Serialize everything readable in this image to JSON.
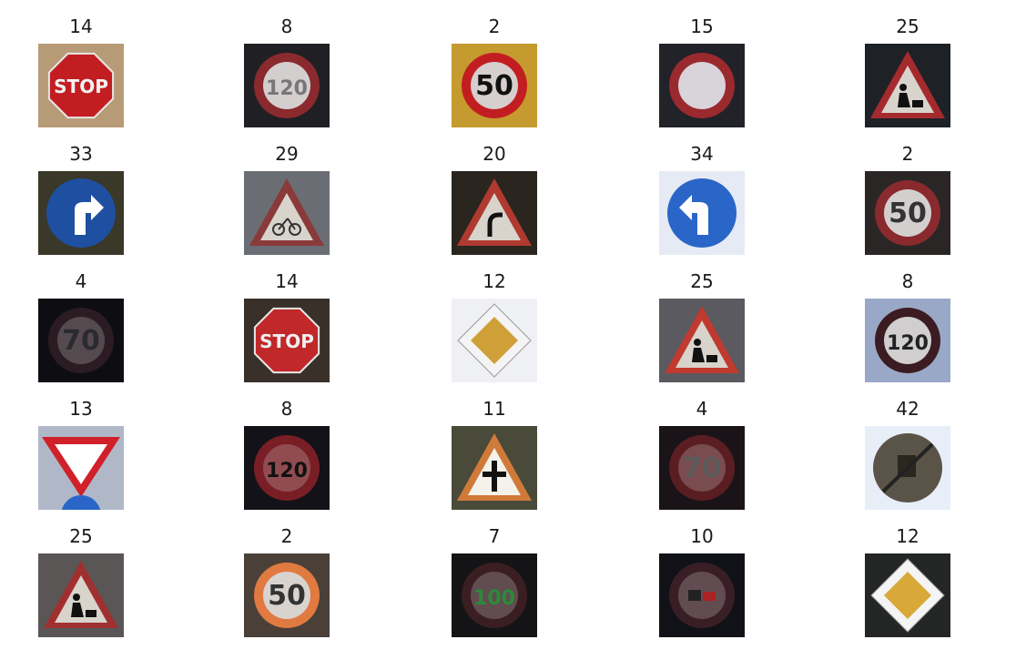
{
  "tiles": [
    {
      "label": "14",
      "icon": "stop-sign",
      "bg": "#b79a76",
      "plate": "#c21e22",
      "plate_text": "STOP",
      "text_color": "#f2f2f2"
    },
    {
      "label": "8",
      "icon": "speed-limit-120-sign",
      "bg": "#202024",
      "plate": "#8a2a2e",
      "plate_text": "120",
      "text_color": "#777777"
    },
    {
      "label": "2",
      "icon": "speed-limit-50-sign",
      "bg": "#c59a2e",
      "plate": "#c21e22",
      "plate_text": "50",
      "text_color": "#111111"
    },
    {
      "label": "15",
      "icon": "no-vehicles-sign",
      "bg": "#222229",
      "plate": "#9a2a2e",
      "plate_text": "",
      "text_color": "#111111"
    },
    {
      "label": "25",
      "icon": "road-work-sign",
      "bg": "#1e2126",
      "plate": "#a52a2e",
      "plate_text": "",
      "text_color": "#111111"
    },
    {
      "label": "33",
      "icon": "turn-right-ahead-sign",
      "bg": "#3a3828",
      "plate": "#1f4fa0",
      "plate_text": "",
      "text_color": "#ffffff"
    },
    {
      "label": "29",
      "icon": "bicycles-crossing-sign",
      "bg": "#6a6e74",
      "plate": "#8a3a3a",
      "plate_text": "",
      "text_color": "#111111"
    },
    {
      "label": "20",
      "icon": "dangerous-curve-right-sign",
      "bg": "#2b2520",
      "plate": "#b03a30",
      "plate_text": "",
      "text_color": "#111111"
    },
    {
      "label": "34",
      "icon": "turn-left-ahead-sign",
      "bg": "#e6eaf4",
      "plate": "#2a66c8",
      "plate_text": "",
      "text_color": "#ffffff"
    },
    {
      "label": "2",
      "icon": "speed-limit-50-sign",
      "bg": "#2a2626",
      "plate": "#8a2a2e",
      "plate_text": "50",
      "text_color": "#333333"
    },
    {
      "label": "4",
      "icon": "speed-limit-70-sign",
      "bg": "#0e0e12",
      "plate": "#2a1c22",
      "plate_text": "70",
      "text_color": "#2a2a30"
    },
    {
      "label": "14",
      "icon": "stop-sign",
      "bg": "#3a302a",
      "plate": "#c0282a",
      "plate_text": "STOP",
      "text_color": "#eeeeee"
    },
    {
      "label": "12",
      "icon": "priority-road-sign",
      "bg": "#eef0f4",
      "plate": "#d0a038",
      "plate_text": "",
      "text_color": "#111111"
    },
    {
      "label": "25",
      "icon": "road-work-sign",
      "bg": "#5a5a60",
      "plate": "#c03a30",
      "plate_text": "",
      "text_color": "#111111"
    },
    {
      "label": "8",
      "icon": "speed-limit-120-sign",
      "bg": "#9aa8c8",
      "plate": "#3a1c22",
      "plate_text": "120",
      "text_color": "#222222"
    },
    {
      "label": "13",
      "icon": "yield-sign",
      "bg": "#b0b8c8",
      "plate": "#d0202a",
      "plate_text": "",
      "text_color": "#111111"
    },
    {
      "label": "8",
      "icon": "speed-limit-120-sign",
      "bg": "#121218",
      "plate": "#7a1e26",
      "plate_text": "120",
      "text_color": "#111111"
    },
    {
      "label": "11",
      "icon": "right-of-way-intersection-sign",
      "bg": "#4a4a3a",
      "plate": "#d07a3a",
      "plate_text": "",
      "text_color": "#111111"
    },
    {
      "label": "4",
      "icon": "speed-limit-70-sign",
      "bg": "#1a1418",
      "plate": "#5a1e22",
      "plate_text": "70",
      "text_color": "#5a5a5a"
    },
    {
      "label": "42",
      "icon": "end-no-passing-trucks-sign",
      "bg": "#e8eef8",
      "plate": "#5a5448",
      "plate_text": "",
      "text_color": "#111111"
    },
    {
      "label": "25",
      "icon": "road-work-sign",
      "bg": "#5a5656",
      "plate": "#a03030",
      "plate_text": "",
      "text_color": "#111111"
    },
    {
      "label": "2",
      "icon": "speed-limit-50-sign",
      "bg": "#4a4038",
      "plate": "#e07a40",
      "plate_text": "50",
      "text_color": "#333333"
    },
    {
      "label": "7",
      "icon": "speed-limit-100-sign",
      "bg": "#141416",
      "plate": "#3a1e22",
      "plate_text": "100",
      "text_color": "#2a8a3a"
    },
    {
      "label": "10",
      "icon": "no-passing-trucks-sign",
      "bg": "#101218",
      "plate": "#3a1e26",
      "plate_text": "",
      "text_color": "#111111"
    },
    {
      "label": "12",
      "icon": "priority-road-sign",
      "bg": "#242626",
      "plate": "#d8a838",
      "plate_text": "",
      "text_color": "#111111"
    }
  ]
}
